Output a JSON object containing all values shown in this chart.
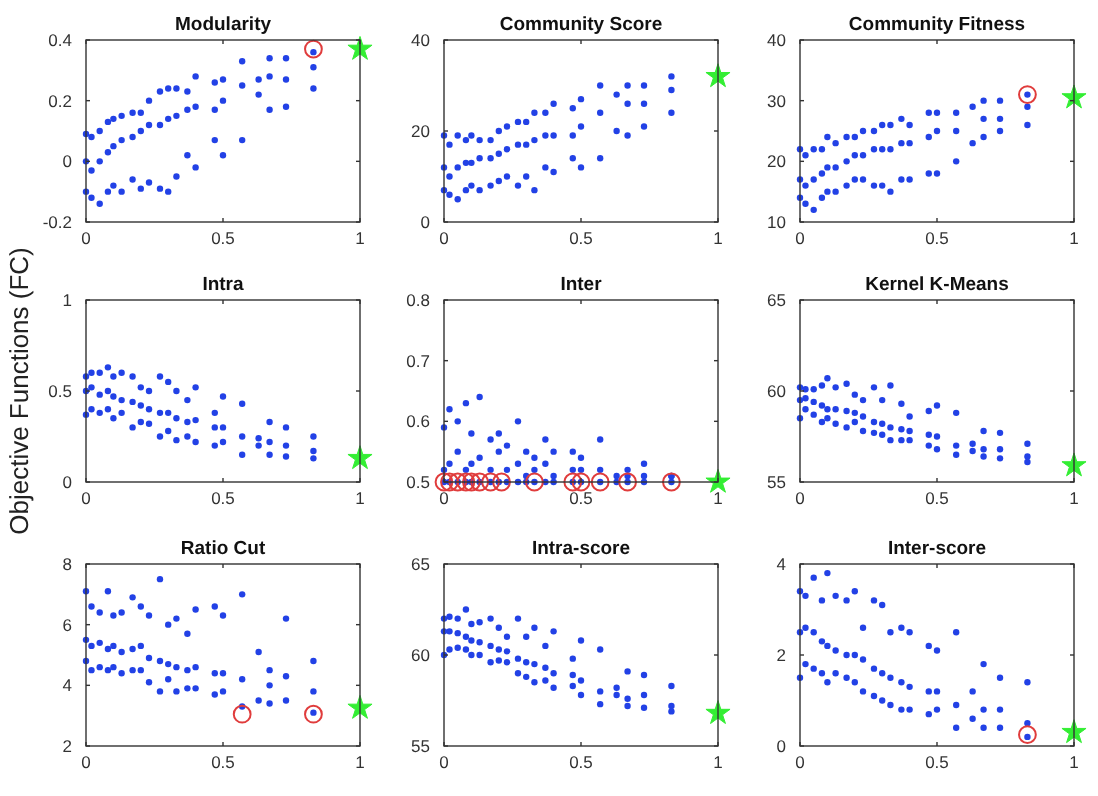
{
  "chart_data": [
    {
      "type": "scatter",
      "title": "Modularity",
      "xlim": [
        0,
        1
      ],
      "xticks": [
        0,
        0.5,
        1
      ],
      "ylim": [
        -0.2,
        0.4
      ],
      "yticks": [
        -0.2,
        0,
        0.2,
        0.4
      ],
      "series": [
        {
          "color": "#2241e6",
          "marker": "circle",
          "x": [
            0,
            0,
            0,
            0.02,
            0.02,
            0.02,
            0.05,
            0.05,
            0.05,
            0.08,
            0.08,
            0.08,
            0.1,
            0.1,
            0.1,
            0.13,
            0.13,
            0.13,
            0.17,
            0.17,
            0.17,
            0.2,
            0.2,
            0.2,
            0.23,
            0.23,
            0.23,
            0.27,
            0.27,
            0.27,
            0.3,
            0.3,
            0.3,
            0.33,
            0.33,
            0.33,
            0.37,
            0.37,
            0.37,
            0.4,
            0.4,
            0.4,
            0.47,
            0.47,
            0.47,
            0.5,
            0.5,
            0.5,
            0.57,
            0.57,
            0.57,
            0.63,
            0.63,
            0.67,
            0.67,
            0.67,
            0.73,
            0.73,
            0.73,
            0.83,
            0.83,
            0.83
          ],
          "values": [
            -0.1,
            0,
            0.09,
            -0.12,
            -0.03,
            0.08,
            -0.14,
            0,
            0.1,
            -0.1,
            0.03,
            0.13,
            -0.08,
            0.05,
            0.14,
            -0.1,
            0.07,
            0.15,
            -0.06,
            0.08,
            0.16,
            -0.09,
            0.1,
            0.16,
            -0.07,
            0.12,
            0.2,
            -0.09,
            0.12,
            0.23,
            -0.1,
            0.14,
            0.24,
            -0.05,
            0.15,
            0.24,
            0.02,
            0.17,
            0.23,
            -0.02,
            0.18,
            0.28,
            0.07,
            0.17,
            0.26,
            0.02,
            0.2,
            0.27,
            0.07,
            0.25,
            0.33,
            0.22,
            0.27,
            0.17,
            0.28,
            0.34,
            0.18,
            0.27,
            0.34,
            0.24,
            0.31,
            0.36
          ]
        },
        {
          "color": "#e03c3c",
          "marker": "circle",
          "x": [
            0.83
          ],
          "values": [
            0.37
          ]
        },
        {
          "color": "#33ee33",
          "marker": "star",
          "x": [
            1
          ],
          "values": [
            0.37
          ]
        }
      ]
    },
    {
      "type": "scatter",
      "title": "Community Score",
      "xlim": [
        0,
        1
      ],
      "xticks": [
        0,
        0.5,
        1
      ],
      "ylim": [
        0,
        40
      ],
      "yticks": [
        0,
        20,
        40
      ],
      "series": [
        {
          "color": "#2241e6",
          "marker": "circle",
          "x": [
            0,
            0,
            0,
            0.02,
            0.02,
            0.02,
            0.05,
            0.05,
            0.05,
            0.08,
            0.08,
            0.08,
            0.1,
            0.1,
            0.1,
            0.13,
            0.13,
            0.13,
            0.17,
            0.17,
            0.17,
            0.2,
            0.2,
            0.2,
            0.23,
            0.23,
            0.23,
            0.27,
            0.27,
            0.27,
            0.3,
            0.3,
            0.3,
            0.33,
            0.33,
            0.33,
            0.37,
            0.37,
            0.37,
            0.4,
            0.4,
            0.4,
            0.47,
            0.47,
            0.47,
            0.5,
            0.5,
            0.5,
            0.57,
            0.57,
            0.57,
            0.63,
            0.63,
            0.67,
            0.67,
            0.67,
            0.73,
            0.73,
            0.73,
            0.83,
            0.83,
            0.83
          ],
          "values": [
            7,
            12,
            19,
            6,
            10,
            17,
            5,
            12,
            19,
            7,
            13,
            18,
            8,
            13,
            19,
            7,
            14,
            18,
            8,
            14,
            18,
            9,
            15,
            20,
            10,
            16,
            21,
            8,
            17,
            22,
            10,
            17,
            22,
            7,
            18,
            24,
            12,
            19,
            24,
            11,
            19,
            26,
            14,
            19,
            25,
            12,
            21,
            27,
            14,
            24,
            30,
            20,
            28,
            19,
            26,
            30,
            21,
            26,
            30,
            24,
            29,
            32
          ]
        },
        {
          "color": "#33ee33",
          "marker": "star",
          "x": [
            1
          ],
          "values": [
            32
          ]
        }
      ]
    },
    {
      "type": "scatter",
      "title": "Community Fitness",
      "xlim": [
        0,
        1
      ],
      "xticks": [
        0,
        0.5,
        1
      ],
      "ylim": [
        10,
        40
      ],
      "yticks": [
        10,
        20,
        30,
        40
      ],
      "series": [
        {
          "color": "#2241e6",
          "marker": "circle",
          "x": [
            0,
            0,
            0,
            0.02,
            0.02,
            0.02,
            0.05,
            0.05,
            0.05,
            0.08,
            0.08,
            0.08,
            0.1,
            0.1,
            0.1,
            0.13,
            0.13,
            0.13,
            0.17,
            0.17,
            0.17,
            0.2,
            0.2,
            0.2,
            0.23,
            0.23,
            0.23,
            0.27,
            0.27,
            0.27,
            0.3,
            0.3,
            0.3,
            0.33,
            0.33,
            0.33,
            0.37,
            0.37,
            0.37,
            0.4,
            0.4,
            0.4,
            0.47,
            0.47,
            0.47,
            0.5,
            0.5,
            0.5,
            0.57,
            0.57,
            0.57,
            0.63,
            0.63,
            0.67,
            0.67,
            0.67,
            0.73,
            0.73,
            0.73,
            0.83,
            0.83,
            0.83
          ],
          "values": [
            14,
            17,
            22,
            13,
            16,
            21,
            12,
            17,
            22,
            14,
            18,
            22,
            15,
            19,
            24,
            15,
            19,
            23,
            16,
            20,
            24,
            17,
            21,
            24,
            17,
            21,
            25,
            16,
            22,
            25,
            16,
            22,
            26,
            15,
            22,
            26,
            17,
            23,
            27,
            17,
            23,
            26,
            18,
            24,
            28,
            18,
            25,
            28,
            20,
            25,
            28,
            23,
            29,
            24,
            27,
            30,
            25,
            27,
            30,
            26,
            29,
            31
          ]
        },
        {
          "color": "#e03c3c",
          "marker": "circle",
          "x": [
            0.83
          ],
          "values": [
            31
          ]
        },
        {
          "color": "#33ee33",
          "marker": "star",
          "x": [
            1
          ],
          "values": [
            30.5
          ]
        }
      ]
    },
    {
      "type": "scatter",
      "title": "Intra",
      "ylabel": "Objective Functions (FC)",
      "xlim": [
        0,
        1
      ],
      "xticks": [
        0,
        0.5,
        1
      ],
      "ylim": [
        0,
        1
      ],
      "yticks": [
        0,
        0.5,
        1
      ],
      "series": [
        {
          "color": "#2241e6",
          "marker": "circle",
          "x": [
            0,
            0,
            0,
            0.02,
            0.02,
            0.02,
            0.05,
            0.05,
            0.05,
            0.08,
            0.08,
            0.08,
            0.1,
            0.1,
            0.1,
            0.13,
            0.13,
            0.13,
            0.17,
            0.17,
            0.17,
            0.2,
            0.2,
            0.2,
            0.23,
            0.23,
            0.23,
            0.27,
            0.27,
            0.27,
            0.3,
            0.3,
            0.3,
            0.33,
            0.33,
            0.33,
            0.37,
            0.37,
            0.37,
            0.4,
            0.4,
            0.4,
            0.47,
            0.47,
            0.47,
            0.5,
            0.5,
            0.5,
            0.57,
            0.57,
            0.57,
            0.63,
            0.63,
            0.67,
            0.67,
            0.67,
            0.73,
            0.73,
            0.73,
            0.83,
            0.83,
            0.83
          ],
          "values": [
            0.37,
            0.5,
            0.58,
            0.4,
            0.52,
            0.6,
            0.38,
            0.48,
            0.6,
            0.4,
            0.5,
            0.63,
            0.35,
            0.47,
            0.58,
            0.38,
            0.45,
            0.6,
            0.3,
            0.44,
            0.58,
            0.33,
            0.42,
            0.52,
            0.32,
            0.4,
            0.5,
            0.25,
            0.38,
            0.58,
            0.28,
            0.38,
            0.55,
            0.23,
            0.35,
            0.5,
            0.25,
            0.33,
            0.45,
            0.22,
            0.34,
            0.52,
            0.2,
            0.3,
            0.38,
            0.22,
            0.3,
            0.47,
            0.15,
            0.25,
            0.43,
            0.2,
            0.24,
            0.15,
            0.22,
            0.33,
            0.14,
            0.2,
            0.3,
            0.13,
            0.17,
            0.25
          ]
        },
        {
          "color": "#33ee33",
          "marker": "star",
          "x": [
            1
          ],
          "values": [
            0.13
          ]
        }
      ]
    },
    {
      "type": "scatter",
      "title": "Inter",
      "xlim": [
        0,
        1
      ],
      "xticks": [
        0,
        0.5,
        1
      ],
      "ylim": [
        0.5,
        0.8
      ],
      "yticks": [
        0.5,
        0.6,
        0.7,
        0.8
      ],
      "series": [
        {
          "color": "#2241e6",
          "marker": "circle",
          "x": [
            0,
            0,
            0,
            0.02,
            0.02,
            0.02,
            0.05,
            0.05,
            0.05,
            0.08,
            0.08,
            0.08,
            0.1,
            0.1,
            0.1,
            0.13,
            0.13,
            0.13,
            0.17,
            0.17,
            0.17,
            0.2,
            0.2,
            0.2,
            0.23,
            0.23,
            0.23,
            0.27,
            0.27,
            0.27,
            0.3,
            0.3,
            0.3,
            0.33,
            0.33,
            0.33,
            0.37,
            0.37,
            0.37,
            0.4,
            0.4,
            0.4,
            0.47,
            0.47,
            0.47,
            0.5,
            0.5,
            0.5,
            0.57,
            0.57,
            0.57,
            0.63,
            0.63,
            0.67,
            0.67,
            0.67,
            0.73,
            0.73,
            0.73,
            0.83,
            0.83,
            0.83
          ],
          "values": [
            0.5,
            0.52,
            0.59,
            0.5,
            0.53,
            0.62,
            0.5,
            0.55,
            0.6,
            0.5,
            0.52,
            0.63,
            0.5,
            0.53,
            0.58,
            0.5,
            0.54,
            0.64,
            0.5,
            0.52,
            0.57,
            0.5,
            0.55,
            0.58,
            0.5,
            0.52,
            0.56,
            0.5,
            0.53,
            0.6,
            0.5,
            0.51,
            0.55,
            0.5,
            0.52,
            0.54,
            0.5,
            0.53,
            0.57,
            0.5,
            0.51,
            0.55,
            0.5,
            0.52,
            0.55,
            0.5,
            0.52,
            0.54,
            0.5,
            0.52,
            0.57,
            0.5,
            0.51,
            0.5,
            0.51,
            0.52,
            0.5,
            0.51,
            0.53,
            0.5,
            0.51,
            0.51
          ]
        },
        {
          "color": "#e03c3c",
          "marker": "circle",
          "x": [
            0,
            0.02,
            0.05,
            0.08,
            0.1,
            0.13,
            0.17,
            0.21,
            0.33,
            0.47,
            0.5,
            0.57,
            0.67,
            0.83
          ],
          "values": [
            0.5,
            0.5,
            0.5,
            0.5,
            0.5,
            0.5,
            0.5,
            0.5,
            0.5,
            0.5,
            0.5,
            0.5,
            0.5,
            0.5
          ]
        },
        {
          "color": "#33ee33",
          "marker": "star",
          "x": [
            1
          ],
          "values": [
            0.5
          ]
        }
      ]
    },
    {
      "type": "scatter",
      "title": "Kernel K-Means",
      "xlim": [
        0,
        1
      ],
      "xticks": [
        0,
        0.5,
        1
      ],
      "ylim": [
        55,
        65
      ],
      "yticks": [
        55,
        60,
        65
      ],
      "series": [
        {
          "color": "#2241e6",
          "marker": "circle",
          "x": [
            0,
            0,
            0,
            0.02,
            0.02,
            0.02,
            0.05,
            0.05,
            0.05,
            0.08,
            0.08,
            0.08,
            0.1,
            0.1,
            0.1,
            0.13,
            0.13,
            0.13,
            0.17,
            0.17,
            0.17,
            0.2,
            0.2,
            0.2,
            0.23,
            0.23,
            0.23,
            0.27,
            0.27,
            0.27,
            0.3,
            0.3,
            0.3,
            0.33,
            0.33,
            0.33,
            0.37,
            0.37,
            0.37,
            0.4,
            0.4,
            0.4,
            0.47,
            0.47,
            0.47,
            0.5,
            0.5,
            0.5,
            0.57,
            0.57,
            0.57,
            0.63,
            0.63,
            0.67,
            0.67,
            0.67,
            0.73,
            0.73,
            0.73,
            0.83,
            0.83,
            0.83
          ],
          "values": [
            58.5,
            59.5,
            60.2,
            59,
            59.6,
            60.1,
            58.7,
            59.4,
            60.1,
            58.3,
            59.2,
            60.3,
            58.5,
            59,
            60.7,
            58.2,
            59,
            60.2,
            58,
            58.9,
            60.4,
            58.3,
            58.8,
            59.8,
            57.8,
            58.6,
            59.5,
            57.7,
            58.3,
            60.2,
            57.6,
            58.2,
            59.5,
            57.3,
            58,
            60.3,
            57.3,
            57.9,
            59.3,
            57.3,
            57.8,
            58.6,
            57,
            57.6,
            58.9,
            56.8,
            57.5,
            59.2,
            56.5,
            57,
            58.8,
            56.7,
            57.1,
            56.4,
            56.8,
            57.8,
            56.3,
            56.8,
            57.7,
            56.1,
            56.4,
            57.1
          ]
        },
        {
          "color": "#33ee33",
          "marker": "star",
          "x": [
            1
          ],
          "values": [
            55.9
          ]
        }
      ]
    },
    {
      "type": "scatter",
      "title": "Ratio Cut",
      "xlim": [
        0,
        1
      ],
      "xticks": [
        0,
        0.5,
        1
      ],
      "ylim": [
        2,
        8
      ],
      "yticks": [
        2,
        4,
        6,
        8
      ],
      "series": [
        {
          "color": "#2241e6",
          "marker": "circle",
          "x": [
            0,
            0,
            0,
            0.02,
            0.02,
            0.02,
            0.05,
            0.05,
            0.05,
            0.08,
            0.08,
            0.08,
            0.1,
            0.1,
            0.1,
            0.13,
            0.13,
            0.13,
            0.17,
            0.17,
            0.17,
            0.2,
            0.2,
            0.2,
            0.23,
            0.23,
            0.23,
            0.27,
            0.27,
            0.27,
            0.3,
            0.3,
            0.3,
            0.33,
            0.33,
            0.33,
            0.37,
            0.37,
            0.37,
            0.4,
            0.4,
            0.4,
            0.47,
            0.47,
            0.47,
            0.5,
            0.5,
            0.5,
            0.57,
            0.57,
            0.57,
            0.63,
            0.63,
            0.67,
            0.67,
            0.67,
            0.73,
            0.73,
            0.73,
            0.83,
            0.83,
            0.83
          ],
          "values": [
            4.8,
            5.5,
            7.1,
            4.5,
            5.3,
            6.6,
            4.6,
            5.4,
            6.4,
            4.5,
            5.2,
            7.1,
            4.6,
            5.3,
            6.3,
            4.4,
            5.1,
            6.4,
            4.5,
            5.2,
            6.9,
            4.5,
            5.3,
            6.6,
            4.1,
            4.9,
            6.3,
            3.8,
            4.8,
            7.5,
            4.2,
            4.7,
            6,
            3.8,
            4.6,
            6.2,
            3.9,
            4.5,
            5.7,
            3.9,
            4.6,
            6.5,
            3.7,
            4.4,
            6.6,
            3.8,
            4.4,
            6.3,
            3.3,
            4.2,
            7,
            3.5,
            5.1,
            3.4,
            4,
            4.5,
            3.5,
            4.3,
            6.2,
            3.1,
            3.8,
            4.8
          ]
        },
        {
          "color": "#e03c3c",
          "marker": "circle",
          "x": [
            0.57,
            0.83
          ],
          "values": [
            3.05,
            3.05
          ]
        },
        {
          "color": "#33ee33",
          "marker": "star",
          "x": [
            1
          ],
          "values": [
            3.25
          ]
        }
      ]
    },
    {
      "type": "scatter",
      "title": "Intra-score",
      "xlim": [
        0,
        1
      ],
      "xticks": [
        0,
        0.5,
        1
      ],
      "ylim": [
        55,
        65
      ],
      "yticks": [
        55,
        60,
        65
      ],
      "series": [
        {
          "color": "#2241e6",
          "marker": "circle",
          "x": [
            0,
            0,
            0,
            0.02,
            0.02,
            0.02,
            0.05,
            0.05,
            0.05,
            0.08,
            0.08,
            0.08,
            0.1,
            0.1,
            0.1,
            0.13,
            0.13,
            0.13,
            0.17,
            0.17,
            0.17,
            0.2,
            0.2,
            0.2,
            0.23,
            0.23,
            0.23,
            0.27,
            0.27,
            0.27,
            0.3,
            0.3,
            0.3,
            0.33,
            0.33,
            0.33,
            0.37,
            0.37,
            0.37,
            0.4,
            0.4,
            0.4,
            0.47,
            0.47,
            0.47,
            0.5,
            0.5,
            0.5,
            0.57,
            0.57,
            0.57,
            0.63,
            0.63,
            0.67,
            0.67,
            0.67,
            0.73,
            0.73,
            0.73,
            0.83,
            0.83,
            0.83
          ],
          "values": [
            60,
            61.3,
            62,
            60.3,
            61.3,
            62.1,
            60.4,
            61.2,
            62,
            60.3,
            61,
            62.5,
            60,
            60.8,
            61.7,
            60,
            60.7,
            61.8,
            59.6,
            60.5,
            62,
            59.7,
            60.3,
            61.5,
            59.6,
            60.2,
            61,
            59,
            59.8,
            62,
            58.8,
            59.6,
            61,
            58.5,
            59.5,
            61.5,
            58.6,
            59.3,
            60.5,
            58.2,
            59,
            61.3,
            58.3,
            58.9,
            59.8,
            57.8,
            58.6,
            60.8,
            57.3,
            58,
            60.3,
            57.8,
            58.2,
            57.2,
            57.6,
            59.1,
            57.1,
            57.8,
            58.9,
            56.9,
            57.2,
            58.3
          ]
        },
        {
          "color": "#33ee33",
          "marker": "star",
          "x": [
            1
          ],
          "values": [
            56.8
          ]
        }
      ]
    },
    {
      "type": "scatter",
      "title": "Inter-score",
      "xlim": [
        0,
        1
      ],
      "xticks": [
        0,
        0.5,
        1
      ],
      "ylim": [
        0,
        4
      ],
      "yticks": [
        0,
        2,
        4
      ],
      "series": [
        {
          "color": "#2241e6",
          "marker": "circle",
          "x": [
            0,
            0,
            0,
            0.02,
            0.02,
            0.02,
            0.05,
            0.05,
            0.05,
            0.08,
            0.08,
            0.08,
            0.1,
            0.1,
            0.1,
            0.13,
            0.13,
            0.13,
            0.17,
            0.17,
            0.17,
            0.2,
            0.2,
            0.2,
            0.23,
            0.23,
            0.23,
            0.27,
            0.27,
            0.27,
            0.3,
            0.3,
            0.3,
            0.33,
            0.33,
            0.33,
            0.37,
            0.37,
            0.37,
            0.4,
            0.4,
            0.4,
            0.47,
            0.47,
            0.47,
            0.5,
            0.5,
            0.5,
            0.57,
            0.57,
            0.57,
            0.63,
            0.63,
            0.67,
            0.67,
            0.67,
            0.73,
            0.73,
            0.73,
            0.83,
            0.83,
            0.83
          ],
          "values": [
            1.5,
            2.5,
            3.4,
            1.8,
            2.6,
            3.3,
            1.7,
            2.5,
            3.7,
            1.6,
            2.3,
            3.2,
            1.4,
            2.2,
            3.8,
            1.6,
            2.1,
            3.3,
            1.5,
            2,
            3.2,
            1.4,
            2,
            3.4,
            1.2,
            1.9,
            2.6,
            1.1,
            1.7,
            3.2,
            1,
            1.6,
            3.1,
            0.9,
            1.5,
            2.5,
            0.8,
            1.4,
            2.6,
            0.8,
            1.3,
            2.5,
            0.7,
            1.2,
            2.2,
            0.8,
            1.2,
            2.1,
            0.4,
            0.9,
            2.5,
            0.6,
            1.2,
            0.4,
            0.8,
            1.8,
            0.4,
            0.8,
            1.5,
            0.2,
            0.5,
            1.4
          ]
        },
        {
          "color": "#e03c3c",
          "marker": "circle",
          "x": [
            0.83
          ],
          "values": [
            0.25
          ]
        },
        {
          "color": "#33ee33",
          "marker": "star",
          "x": [
            1
          ],
          "values": [
            0.3
          ]
        }
      ]
    }
  ]
}
